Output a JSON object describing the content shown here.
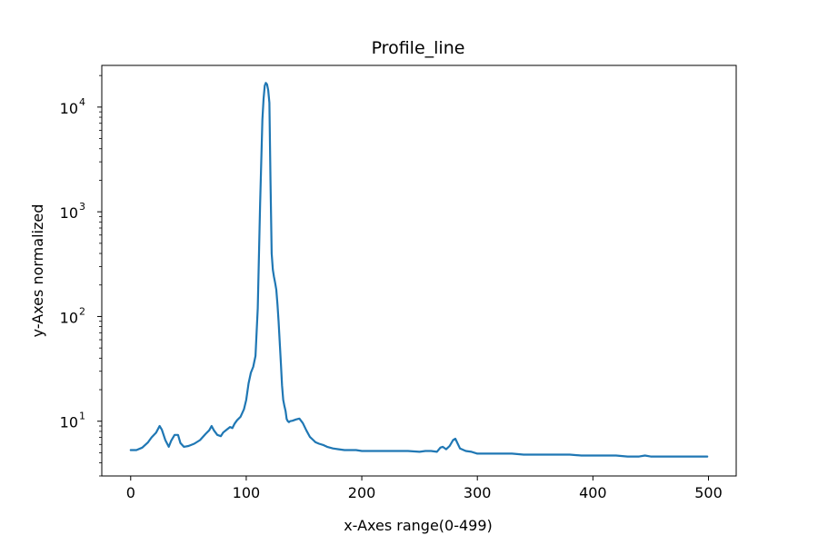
{
  "chart_data": {
    "type": "line",
    "title": "Profile_line",
    "xlabel": "x-Axes range(0-499)",
    "ylabel": "y-Axes normalized",
    "xlim": [
      -25,
      524
    ],
    "ylim": [
      3.0,
      25000
    ],
    "yscale": "log",
    "grid": false,
    "legend": "none",
    "xticks": [
      0,
      100,
      200,
      300,
      400,
      500
    ],
    "xtick_labels": [
      "0",
      "100",
      "200",
      "300",
      "400",
      "500"
    ],
    "yticks": [
      10,
      100,
      1000,
      10000
    ],
    "ytick_labels": [
      {
        "base": "10",
        "exp": "1"
      },
      {
        "base": "10",
        "exp": "2"
      },
      {
        "base": "10",
        "exp": "3"
      },
      {
        "base": "10",
        "exp": "4"
      }
    ],
    "line_color": "#1f77b4",
    "series": [
      {
        "x": [
          0,
          5,
          10,
          15,
          18,
          22,
          25,
          27,
          30,
          33,
          35,
          38,
          41,
          43,
          46,
          50,
          55,
          60,
          65,
          68,
          70,
          72,
          75,
          78,
          80,
          83,
          86,
          88,
          90,
          92,
          95,
          98,
          100,
          102,
          104,
          106,
          108,
          110,
          112,
          114,
          115,
          116,
          117,
          118,
          119,
          120,
          121,
          122,
          123,
          124,
          125,
          126,
          127,
          128,
          130,
          131,
          132,
          133,
          134,
          135,
          136,
          137,
          138,
          140,
          143,
          146,
          149,
          152,
          155,
          158,
          160,
          163,
          167,
          170,
          175,
          180,
          185,
          190,
          195,
          200,
          210,
          220,
          230,
          240,
          250,
          255,
          260,
          265,
          268,
          270,
          273,
          276,
          279,
          281,
          283,
          285,
          290,
          295,
          300,
          310,
          320,
          330,
          340,
          350,
          360,
          370,
          380,
          390,
          400,
          410,
          420,
          430,
          440,
          445,
          450,
          460,
          470,
          480,
          490,
          499
        ],
        "y": [
          5.3,
          5.3,
          5.6,
          6.3,
          7.0,
          7.8,
          9.0,
          8.3,
          6.6,
          5.7,
          6.5,
          7.4,
          7.4,
          6.2,
          5.7,
          5.8,
          6.1,
          6.6,
          7.6,
          8.2,
          9.0,
          8.2,
          7.4,
          7.2,
          7.8,
          8.3,
          8.8,
          8.6,
          9.5,
          10.2,
          11.0,
          13.0,
          16.0,
          23.0,
          29.0,
          33.0,
          42.0,
          120,
          1200,
          7600,
          12000,
          16000,
          17000,
          16500,
          14500,
          11000,
          2000,
          400,
          280,
          240,
          210,
          180,
          130,
          90,
          35,
          22,
          16,
          14,
          12.5,
          10.5,
          10.0,
          9.8,
          10.0,
          10.1,
          10.4,
          10.6,
          9.6,
          8.2,
          7.1,
          6.6,
          6.3,
          6.1,
          5.9,
          5.7,
          5.5,
          5.4,
          5.3,
          5.3,
          5.3,
          5.2,
          5.2,
          5.2,
          5.2,
          5.2,
          5.1,
          5.2,
          5.2,
          5.1,
          5.6,
          5.7,
          5.4,
          5.8,
          6.6,
          6.8,
          6.1,
          5.5,
          5.2,
          5.1,
          4.9,
          4.9,
          4.9,
          4.9,
          4.8,
          4.8,
          4.8,
          4.8,
          4.8,
          4.7,
          4.7,
          4.7,
          4.7,
          4.6,
          4.6,
          4.7,
          4.6,
          4.6,
          4.6,
          4.6,
          4.6,
          4.6
        ]
      }
    ]
  }
}
